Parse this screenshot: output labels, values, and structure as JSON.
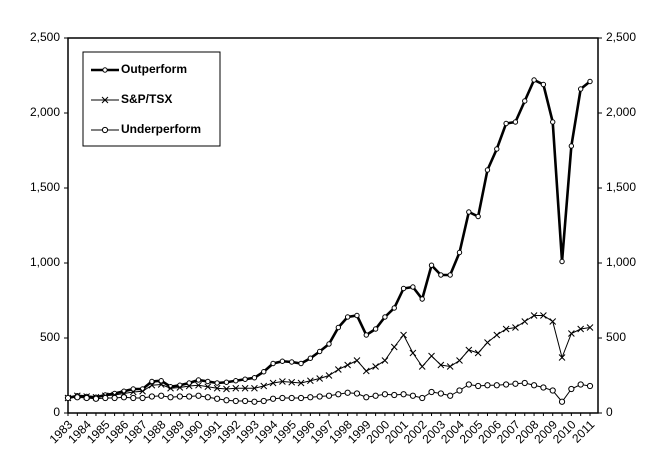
{
  "chart_data": {
    "type": "line",
    "categories": [
      "1983",
      null,
      "1984",
      null,
      "1985",
      null,
      "1986",
      null,
      "1987",
      null,
      "1988",
      null,
      "1989",
      null,
      "1990",
      null,
      "1991",
      null,
      "1992",
      null,
      "1993",
      null,
      "1994",
      null,
      "1995",
      null,
      "1996",
      null,
      "1997",
      null,
      "1998",
      null,
      "1999",
      null,
      "2000",
      null,
      "2001",
      null,
      "2002",
      null,
      "2003",
      null,
      "2004",
      null,
      "2005",
      null,
      "2006",
      null,
      "2007",
      null,
      "2008",
      null,
      "2009",
      null,
      "2010",
      null,
      "2011"
    ],
    "series": [
      {
        "name": "Outperform",
        "color": "#000000",
        "marker": "diamond",
        "values": [
          100,
          115,
          110,
          105,
          120,
          130,
          145,
          160,
          160,
          210,
          215,
          175,
          185,
          200,
          220,
          210,
          200,
          205,
          215,
          225,
          235,
          275,
          330,
          345,
          340,
          330,
          365,
          410,
          460,
          570,
          640,
          650,
          520,
          560,
          640,
          700,
          830,
          840,
          760,
          985,
          920,
          920,
          1070,
          1340,
          1310,
          1620,
          1760,
          1930,
          1940,
          2080,
          2220,
          2190,
          1940,
          1010,
          1780,
          2160,
          2210
        ]
      },
      {
        "name": "S&P/TSX",
        "color": "#000000",
        "marker": "x",
        "values": [
          100,
          115,
          110,
          105,
          115,
          120,
          130,
          140,
          145,
          185,
          190,
          165,
          170,
          180,
          185,
          175,
          165,
          160,
          165,
          165,
          165,
          180,
          200,
          210,
          205,
          200,
          215,
          230,
          250,
          290,
          320,
          350,
          280,
          310,
          350,
          440,
          520,
          400,
          310,
          380,
          320,
          310,
          350,
          420,
          400,
          470,
          520,
          560,
          570,
          610,
          650,
          650,
          610,
          370,
          530,
          560,
          570
        ]
      },
      {
        "name": "Underperform",
        "color": "#000000",
        "marker": "circle",
        "values": [
          100,
          105,
          100,
          95,
          100,
          100,
          105,
          100,
          100,
          110,
          115,
          105,
          110,
          110,
          115,
          105,
          95,
          85,
          80,
          80,
          75,
          80,
          95,
          100,
          100,
          100,
          105,
          110,
          115,
          125,
          135,
          130,
          105,
          115,
          125,
          120,
          125,
          115,
          100,
          140,
          130,
          115,
          150,
          190,
          180,
          185,
          185,
          190,
          195,
          200,
          185,
          170,
          150,
          75,
          160,
          190,
          180
        ]
      }
    ],
    "ylim": [
      0,
      2500
    ],
    "yticks": [
      0,
      500,
      {
        "value": 1000,
        "label": "1,000"
      },
      {
        "value": 1500,
        "label": "1,500"
      },
      {
        "value": 2000,
        "label": "2,000"
      },
      {
        "value": 2500,
        "label": "2,500"
      }
    ],
    "y2lim": [
      0,
      2500
    ],
    "y2ticks": [
      0,
      500,
      {
        "value": 1000,
        "label": "1,000"
      },
      {
        "value": 1500,
        "label": "1,500"
      },
      {
        "value": 2000,
        "label": "2,000"
      },
      {
        "value": 2500,
        "label": "2,500"
      }
    ],
    "legend": "upper left",
    "grid": false
  }
}
